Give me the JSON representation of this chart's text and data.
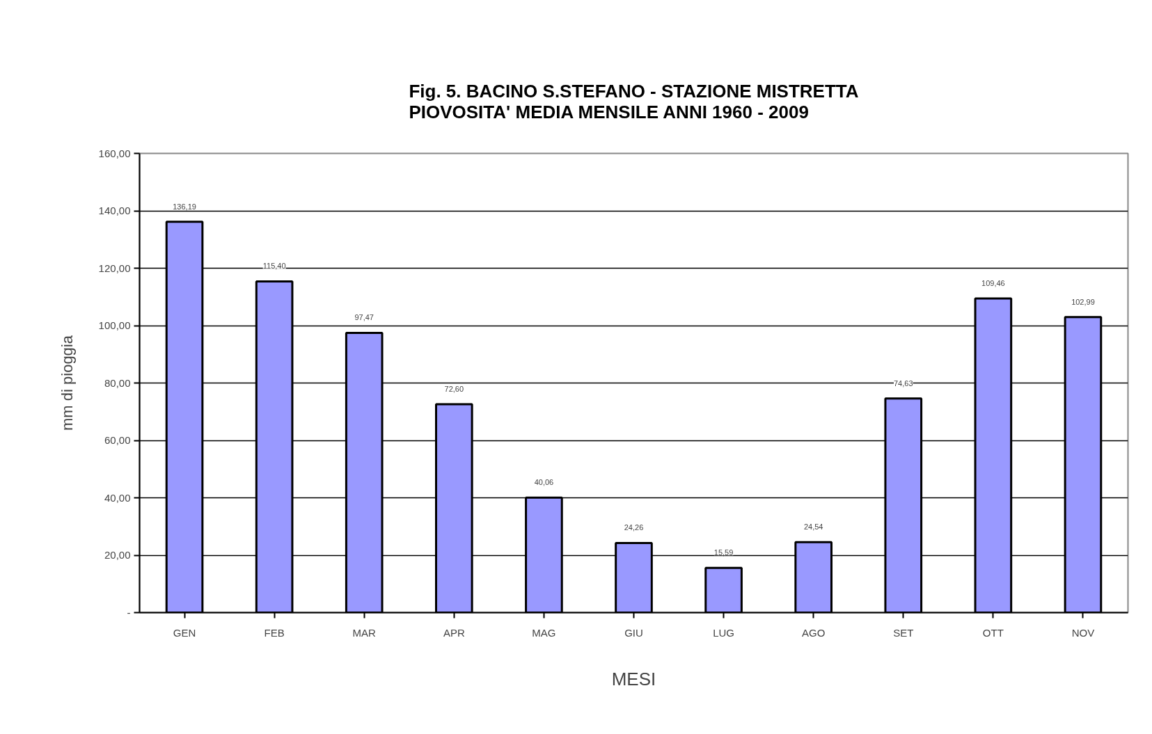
{
  "chart_data": {
    "type": "bar",
    "title": "Fig. 5. BACINO S.STEFANO - STAZIONE MISTRETTA\nPIOVOSITA' MEDIA MENSILE ANNI 1960 - 2009",
    "xlabel": "MESI",
    "ylabel": "mm di pioggia",
    "categories": [
      "GEN",
      "FEB",
      "MAR",
      "APR",
      "MAG",
      "GIU",
      "LUG",
      "AGO",
      "SET",
      "OTT",
      "NOV"
    ],
    "values": [
      136.19,
      115.4,
      97.47,
      72.6,
      40.06,
      24.26,
      15.59,
      24.54,
      74.63,
      109.46,
      102.99
    ],
    "value_labels": [
      "136,19",
      "115,40",
      "97,47",
      "72,60",
      "40,06",
      "24,26",
      "15,59",
      "24,54",
      "74,63",
      "109,46",
      "102,99"
    ],
    "color": "#9999ff",
    "ylim": [
      0,
      160
    ],
    "yticks": [
      {
        "value": 0,
        "label": "-"
      },
      {
        "value": 20,
        "label": "20,00"
      },
      {
        "value": 40,
        "label": "40,00"
      },
      {
        "value": 60,
        "label": "60,00"
      },
      {
        "value": 80,
        "label": "80,00"
      },
      {
        "value": 100,
        "label": "100,00"
      },
      {
        "value": 120,
        "label": "120,00"
      },
      {
        "value": 140,
        "label": "140,00"
      },
      {
        "value": 160,
        "label": "160,00"
      }
    ],
    "grid": "y"
  }
}
